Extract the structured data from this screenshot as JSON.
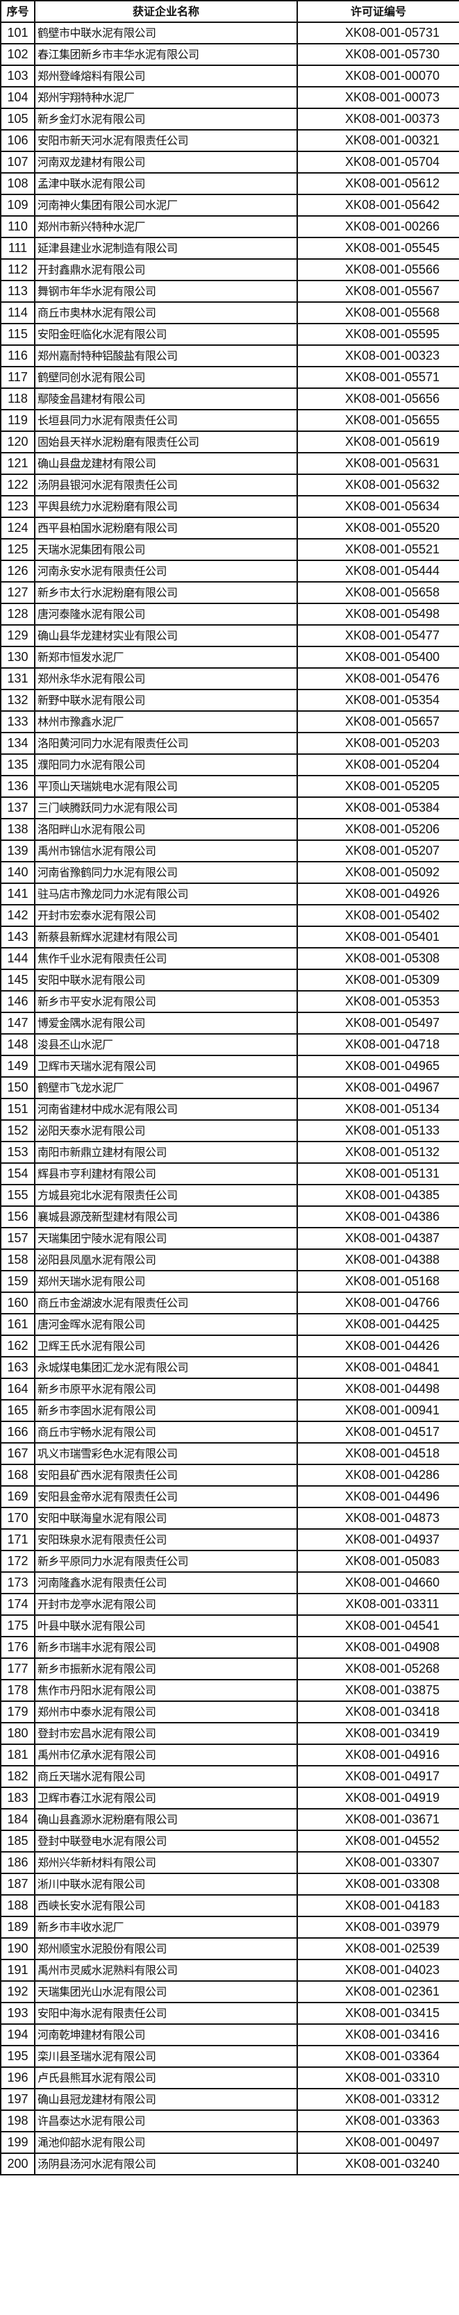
{
  "table": {
    "headers": [
      "序号",
      "获证企业名称",
      "许可证编号"
    ],
    "rows": [
      [
        "101",
        "鹤壁市中联水泥有限公司",
        "XK08-001-05731"
      ],
      [
        "102",
        "春江集团新乡市丰华水泥有限公司",
        "XK08-001-05730"
      ],
      [
        "103",
        "郑州登峰熔料有限公司",
        "XK08-001-00070"
      ],
      [
        "104",
        "郑州宇翔特种水泥厂",
        "XK08-001-00073"
      ],
      [
        "105",
        "新乡金灯水泥有限公司",
        "XK08-001-00373"
      ],
      [
        "106",
        "安阳市新天河水泥有限责任公司",
        "XK08-001-00321"
      ],
      [
        "107",
        "河南双龙建材有限公司",
        "XK08-001-05704"
      ],
      [
        "108",
        "孟津中联水泥有限公司",
        "XK08-001-05612"
      ],
      [
        "109",
        "河南神火集团有限公司水泥厂",
        "XK08-001-05642"
      ],
      [
        "110",
        "郑州市新兴特种水泥厂",
        "XK08-001-00266"
      ],
      [
        "111",
        "延津县建业水泥制造有限公司",
        "XK08-001-05545"
      ],
      [
        "112",
        "开封鑫鼎水泥有限公司",
        "XK08-001-05566"
      ],
      [
        "113",
        "舞钢市年华水泥有限公司",
        "XK08-001-05567"
      ],
      [
        "114",
        "商丘市奥林水泥有限公司",
        "XK08-001-05568"
      ],
      [
        "115",
        "安阳金旺临化水泥有限公司",
        "XK08-001-05595"
      ],
      [
        "116",
        "郑州嘉耐特种铝酸盐有限公司",
        "XK08-001-00323"
      ],
      [
        "117",
        "鹤壁同创水泥有限公司",
        "XK08-001-05571"
      ],
      [
        "118",
        "鄢陵金昌建材有限公司",
        "XK08-001-05656"
      ],
      [
        "119",
        "长垣县同力水泥有限责任公司",
        "XK08-001-05655"
      ],
      [
        "120",
        "固始县天祥水泥粉磨有限责任公司",
        "XK08-001-05619"
      ],
      [
        "121",
        "确山县盘龙建材有限公司",
        "XK08-001-05631"
      ],
      [
        "122",
        "汤阴县银河水泥有限责任公司",
        "XK08-001-05632"
      ],
      [
        "123",
        "平舆县统力水泥粉磨有限公司",
        "XK08-001-05634"
      ],
      [
        "124",
        "西平县柏国水泥粉磨有限公司",
        "XK08-001-05520"
      ],
      [
        "125",
        "天瑞水泥集团有限公司",
        "XK08-001-05521"
      ],
      [
        "126",
        "河南永安水泥有限责任公司",
        "XK08-001-05444"
      ],
      [
        "127",
        "新乡市太行水泥粉磨有限公司",
        "XK08-001-05658"
      ],
      [
        "128",
        "唐河泰隆水泥有限公司",
        "XK08-001-05498"
      ],
      [
        "129",
        "确山县华龙建材实业有限公司",
        "XK08-001-05477"
      ],
      [
        "130",
        "新郑市恒发水泥厂",
        "XK08-001-05400"
      ],
      [
        "131",
        "郑州永华水泥有限公司",
        "XK08-001-05476"
      ],
      [
        "132",
        "新野中联水泥有限公司",
        "XK08-001-05354"
      ],
      [
        "133",
        "林州市豫鑫水泥厂",
        "XK08-001-05657"
      ],
      [
        "134",
        "洛阳黄河同力水泥有限责任公司",
        "XK08-001-05203"
      ],
      [
        "135",
        "濮阳同力水泥有限公司",
        "XK08-001-05204"
      ],
      [
        "136",
        "平顶山天瑞姚电水泥有限公司",
        "XK08-001-05205"
      ],
      [
        "137",
        "三门峡腾跃同力水泥有限公司",
        "XK08-001-05384"
      ],
      [
        "138",
        "洛阳畔山水泥有限公司",
        "XK08-001-05206"
      ],
      [
        "139",
        "禹州市锦信水泥有限公司",
        "XK08-001-05207"
      ],
      [
        "140",
        "河南省豫鹤同力水泥有限公司",
        "XK08-001-05092"
      ],
      [
        "141",
        "驻马店市豫龙同力水泥有限公司",
        "XK08-001-04926"
      ],
      [
        "142",
        "开封市宏泰水泥有限公司",
        "XK08-001-05402"
      ],
      [
        "143",
        "新蔡县新辉水泥建材有限公司",
        "XK08-001-05401"
      ],
      [
        "144",
        "焦作千业水泥有限责任公司",
        "XK08-001-05308"
      ],
      [
        "145",
        "安阳中联水泥有限公司",
        "XK08-001-05309"
      ],
      [
        "146",
        "新乡市平安水泥有限公司",
        "XK08-001-05353"
      ],
      [
        "147",
        "博爱金隅水泥有限公司",
        "XK08-001-05497"
      ],
      [
        "148",
        "浚县丕山水泥厂",
        "XK08-001-04718"
      ],
      [
        "149",
        "卫辉市天瑞水泥有限公司",
        "XK08-001-04965"
      ],
      [
        "150",
        "鹤壁市飞龙水泥厂",
        "XK08-001-04967"
      ],
      [
        "151",
        "河南省建材中成水泥有限公司",
        "XK08-001-05134"
      ],
      [
        "152",
        "泌阳天泰水泥有限公司",
        "XK08-001-05133"
      ],
      [
        "153",
        "南阳市新鼎立建材有限公司",
        "XK08-001-05132"
      ],
      [
        "154",
        "辉县市亨利建材有限公司",
        "XK08-001-05131"
      ],
      [
        "155",
        "方城县宛北水泥有限责任公司",
        "XK08-001-04385"
      ],
      [
        "156",
        "襄城县源茂新型建材有限公司",
        "XK08-001-04386"
      ],
      [
        "157",
        "天瑞集团宁陵水泥有限公司",
        "XK08-001-04387"
      ],
      [
        "158",
        "泌阳县凤凰水泥有限公司",
        "XK08-001-04388"
      ],
      [
        "159",
        "郑州天瑞水泥有限公司",
        "XK08-001-05168"
      ],
      [
        "160",
        "商丘市金湖波水泥有限责任公司",
        "XK08-001-04766"
      ],
      [
        "161",
        "唐河金晖水泥有限公司",
        "XK08-001-04425"
      ],
      [
        "162",
        "卫辉王氏水泥有限公司",
        "XK08-001-04426"
      ],
      [
        "163",
        "永城煤电集团汇龙水泥有限公司",
        "XK08-001-04841"
      ],
      [
        "164",
        "新乡市原平水泥有限公司",
        "XK08-001-04498"
      ],
      [
        "165",
        "新乡市李固水泥有限公司",
        "XK08-001-00941"
      ],
      [
        "166",
        "商丘市宇畅水泥有限公司",
        "XK08-001-04517"
      ],
      [
        "167",
        "巩义市瑞雪彩色水泥有限公司",
        "XK08-001-04518"
      ],
      [
        "168",
        "安阳县矿西水泥有限责任公司",
        "XK08-001-04286"
      ],
      [
        "169",
        "安阳县金帝水泥有限责任公司",
        "XK08-001-04496"
      ],
      [
        "170",
        "安阳中联海皇水泥有限公司",
        "XK08-001-04873"
      ],
      [
        "171",
        "安阳珠泉水泥有限责任公司",
        "XK08-001-04937"
      ],
      [
        "172",
        "新乡平原同力水泥有限责任公司",
        "XK08-001-05083"
      ],
      [
        "173",
        "河南隆鑫水泥有限责任公司",
        "XK08-001-04660"
      ],
      [
        "174",
        "开封市龙亭水泥有限公司",
        "XK08-001-03311"
      ],
      [
        "175",
        "叶县中联水泥有限公司",
        "XK08-001-04541"
      ],
      [
        "176",
        "新乡市瑞丰水泥有限公司",
        "XK08-001-04908"
      ],
      [
        "177",
        "新乡市振新水泥有限公司",
        "XK08-001-05268"
      ],
      [
        "178",
        "焦作市丹阳水泥有限公司",
        "XK08-001-03875"
      ],
      [
        "179",
        "郑州市中泰水泥有限公司",
        "XK08-001-03418"
      ],
      [
        "180",
        "登封市宏昌水泥有限公司",
        "XK08-001-03419"
      ],
      [
        "181",
        "禹州市亿承水泥有限公司",
        "XK08-001-04916"
      ],
      [
        "182",
        "商丘天瑞水泥有限公司",
        "XK08-001-04917"
      ],
      [
        "183",
        "卫辉市春江水泥有限公司",
        "XK08-001-04919"
      ],
      [
        "184",
        "确山县鑫源水泥粉磨有限公司",
        "XK08-001-03671"
      ],
      [
        "185",
        "登封中联登电水泥有限公司",
        "XK08-001-04552"
      ],
      [
        "186",
        "郑州兴华新材料有限公司",
        "XK08-001-03307"
      ],
      [
        "187",
        "淅川中联水泥有限公司",
        "XK08-001-03308"
      ],
      [
        "188",
        "西峡长安水泥有限公司",
        "XK08-001-04183"
      ],
      [
        "189",
        "新乡市丰收水泥厂",
        "XK08-001-03979"
      ],
      [
        "190",
        "郑州顺宝水泥股份有限公司",
        "XK08-001-02539"
      ],
      [
        "191",
        "禹州市灵威水泥熟料有限公司",
        "XK08-001-04023"
      ],
      [
        "192",
        "天瑞集团光山水泥有限公司",
        "XK08-001-02361"
      ],
      [
        "193",
        "安阳中海水泥有限责任公司",
        "XK08-001-03415"
      ],
      [
        "194",
        "河南乾坤建材有限公司",
        "XK08-001-03416"
      ],
      [
        "195",
        "栾川县圣瑞水泥有限公司",
        "XK08-001-03364"
      ],
      [
        "196",
        "卢氏县熊耳水泥有限公司",
        "XK08-001-03310"
      ],
      [
        "197",
        "确山县冠龙建材有限公司",
        "XK08-001-03312"
      ],
      [
        "198",
        "许昌泰达水泥有限公司",
        "XK08-001-03363"
      ],
      [
        "199",
        "渑池仰韶水泥有限公司",
        "XK08-001-00497"
      ],
      [
        "200",
        "汤阴县汤河水泥有限公司",
        "XK08-001-03240"
      ]
    ]
  }
}
